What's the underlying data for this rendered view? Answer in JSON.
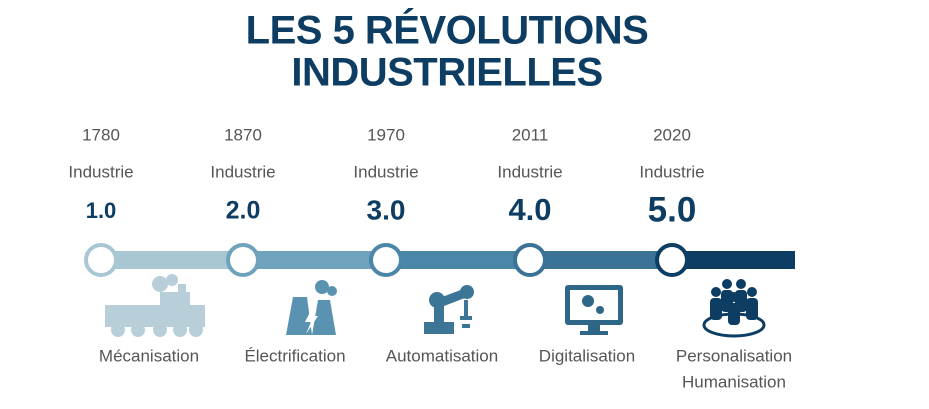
{
  "title": [
    "LES 5 RÉVOLUTIONS",
    "INDUSTRIELLES"
  ],
  "stages": [
    {
      "year": "1780",
      "label": "Industrie",
      "version": "1.0",
      "names": [
        "Mécanisation"
      ]
    },
    {
      "year": "1870",
      "label": "Industrie",
      "version": "2.0",
      "names": [
        "Électrification"
      ]
    },
    {
      "year": "1970",
      "label": "Industrie",
      "version": "3.0",
      "names": [
        "Automatisation"
      ]
    },
    {
      "year": "2011",
      "label": "Industrie",
      "version": "4.0",
      "names": [
        "Digitalisation"
      ]
    },
    {
      "year": "2020",
      "label": "Industrie",
      "version": "5.0",
      "names": [
        "Personalisation",
        "Humanisation"
      ]
    }
  ]
}
